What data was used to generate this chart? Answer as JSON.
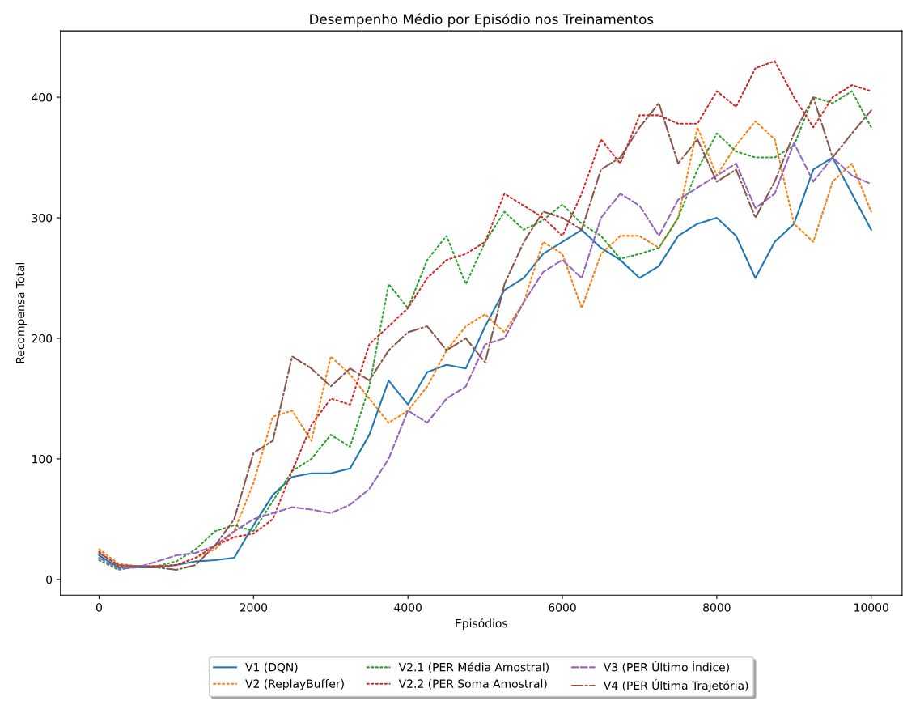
{
  "chart_data": {
    "type": "line",
    "title": "Desempenho Médio por Episódio nos Treinamentos",
    "xlabel": "Episódios",
    "ylabel": "Recompensa Total",
    "x": [
      0,
      250,
      500,
      750,
      1000,
      1250,
      1500,
      1750,
      2000,
      2250,
      2500,
      2750,
      3000,
      3250,
      3500,
      3750,
      4000,
      4250,
      4500,
      4750,
      5000,
      5250,
      5500,
      5750,
      6000,
      6250,
      6500,
      6750,
      7000,
      7250,
      7500,
      7750,
      8000,
      8250,
      8500,
      8750,
      9000,
      9250,
      9500,
      9750,
      10000
    ],
    "xlim": [
      -500,
      10400
    ],
    "xticks": [
      0,
      2000,
      4000,
      6000,
      8000,
      10000
    ],
    "ylim": [
      -13,
      455
    ],
    "yticks": [
      0,
      100,
      200,
      300,
      400
    ],
    "grid": false,
    "legend": "bottom",
    "marker": "none",
    "series": [
      {
        "name": "V1 (DQN)",
        "color": "#1f77b4",
        "line_style": "solid",
        "values": [
          20,
          10,
          10,
          10,
          12,
          15,
          16,
          18,
          45,
          70,
          85,
          88,
          88,
          92,
          120,
          165,
          145,
          172,
          178,
          175,
          210,
          240,
          250,
          270,
          280,
          290,
          275,
          265,
          250,
          260,
          285,
          295,
          300,
          285,
          250,
          280,
          295,
          340,
          350,
          320,
          290
        ]
      },
      {
        "name": "V2 (ReplayBuffer)",
        "color": "#ff7f0e",
        "line_style": "dotted",
        "values": [
          25,
          13,
          11,
          11,
          12,
          18,
          25,
          40,
          80,
          135,
          140,
          115,
          185,
          170,
          150,
          130,
          140,
          160,
          190,
          210,
          220,
          205,
          230,
          280,
          270,
          225,
          270,
          285,
          285,
          275,
          300,
          375,
          335,
          360,
          380,
          365,
          295,
          280,
          330,
          345,
          305
        ]
      },
      {
        "name": "V2.1 (PER Média Amostral)",
        "color": "#2ca02c",
        "line_style": "dotted",
        "values": [
          16,
          8,
          11,
          11,
          15,
          25,
          40,
          45,
          40,
          65,
          90,
          100,
          120,
          110,
          160,
          245,
          225,
          265,
          285,
          245,
          280,
          305,
          290,
          298,
          311,
          295,
          285,
          266,
          270,
          275,
          300,
          340,
          370,
          355,
          350,
          350,
          360,
          400,
          395,
          405,
          375
        ]
      },
      {
        "name": "V2.2 (PER Soma Amostral)",
        "color": "#d62728",
        "line_style": "dotted",
        "values": [
          23,
          11,
          11,
          11,
          12,
          18,
          28,
          35,
          38,
          50,
          90,
          128,
          150,
          145,
          195,
          210,
          225,
          250,
          265,
          270,
          280,
          320,
          310,
          300,
          285,
          320,
          365,
          345,
          385,
          385,
          378,
          378,
          405,
          392,
          424,
          430,
          400,
          375,
          400,
          410,
          405
        ]
      },
      {
        "name": "V3 (PER Último Índice)",
        "color": "#9467bd",
        "line_style": "dashed",
        "values": [
          18,
          9,
          10,
          15,
          20,
          22,
          28,
          40,
          50,
          55,
          60,
          58,
          55,
          62,
          75,
          100,
          140,
          130,
          150,
          160,
          195,
          200,
          230,
          255,
          265,
          250,
          300,
          320,
          310,
          285,
          315,
          325,
          335,
          345,
          308,
          320,
          362,
          330,
          350,
          335,
          328
        ]
      },
      {
        "name": "V4 (PER Última Trajetória)",
        "color": "#8c564b",
        "line_style": "dashdot",
        "values": [
          22,
          12,
          11,
          10,
          8,
          12,
          28,
          50,
          105,
          115,
          185,
          175,
          160,
          175,
          165,
          190,
          205,
          210,
          190,
          200,
          180,
          245,
          280,
          305,
          300,
          290,
          340,
          350,
          375,
          395,
          345,
          365,
          330,
          340,
          300,
          330,
          370,
          400,
          350,
          370,
          389
        ]
      }
    ]
  }
}
